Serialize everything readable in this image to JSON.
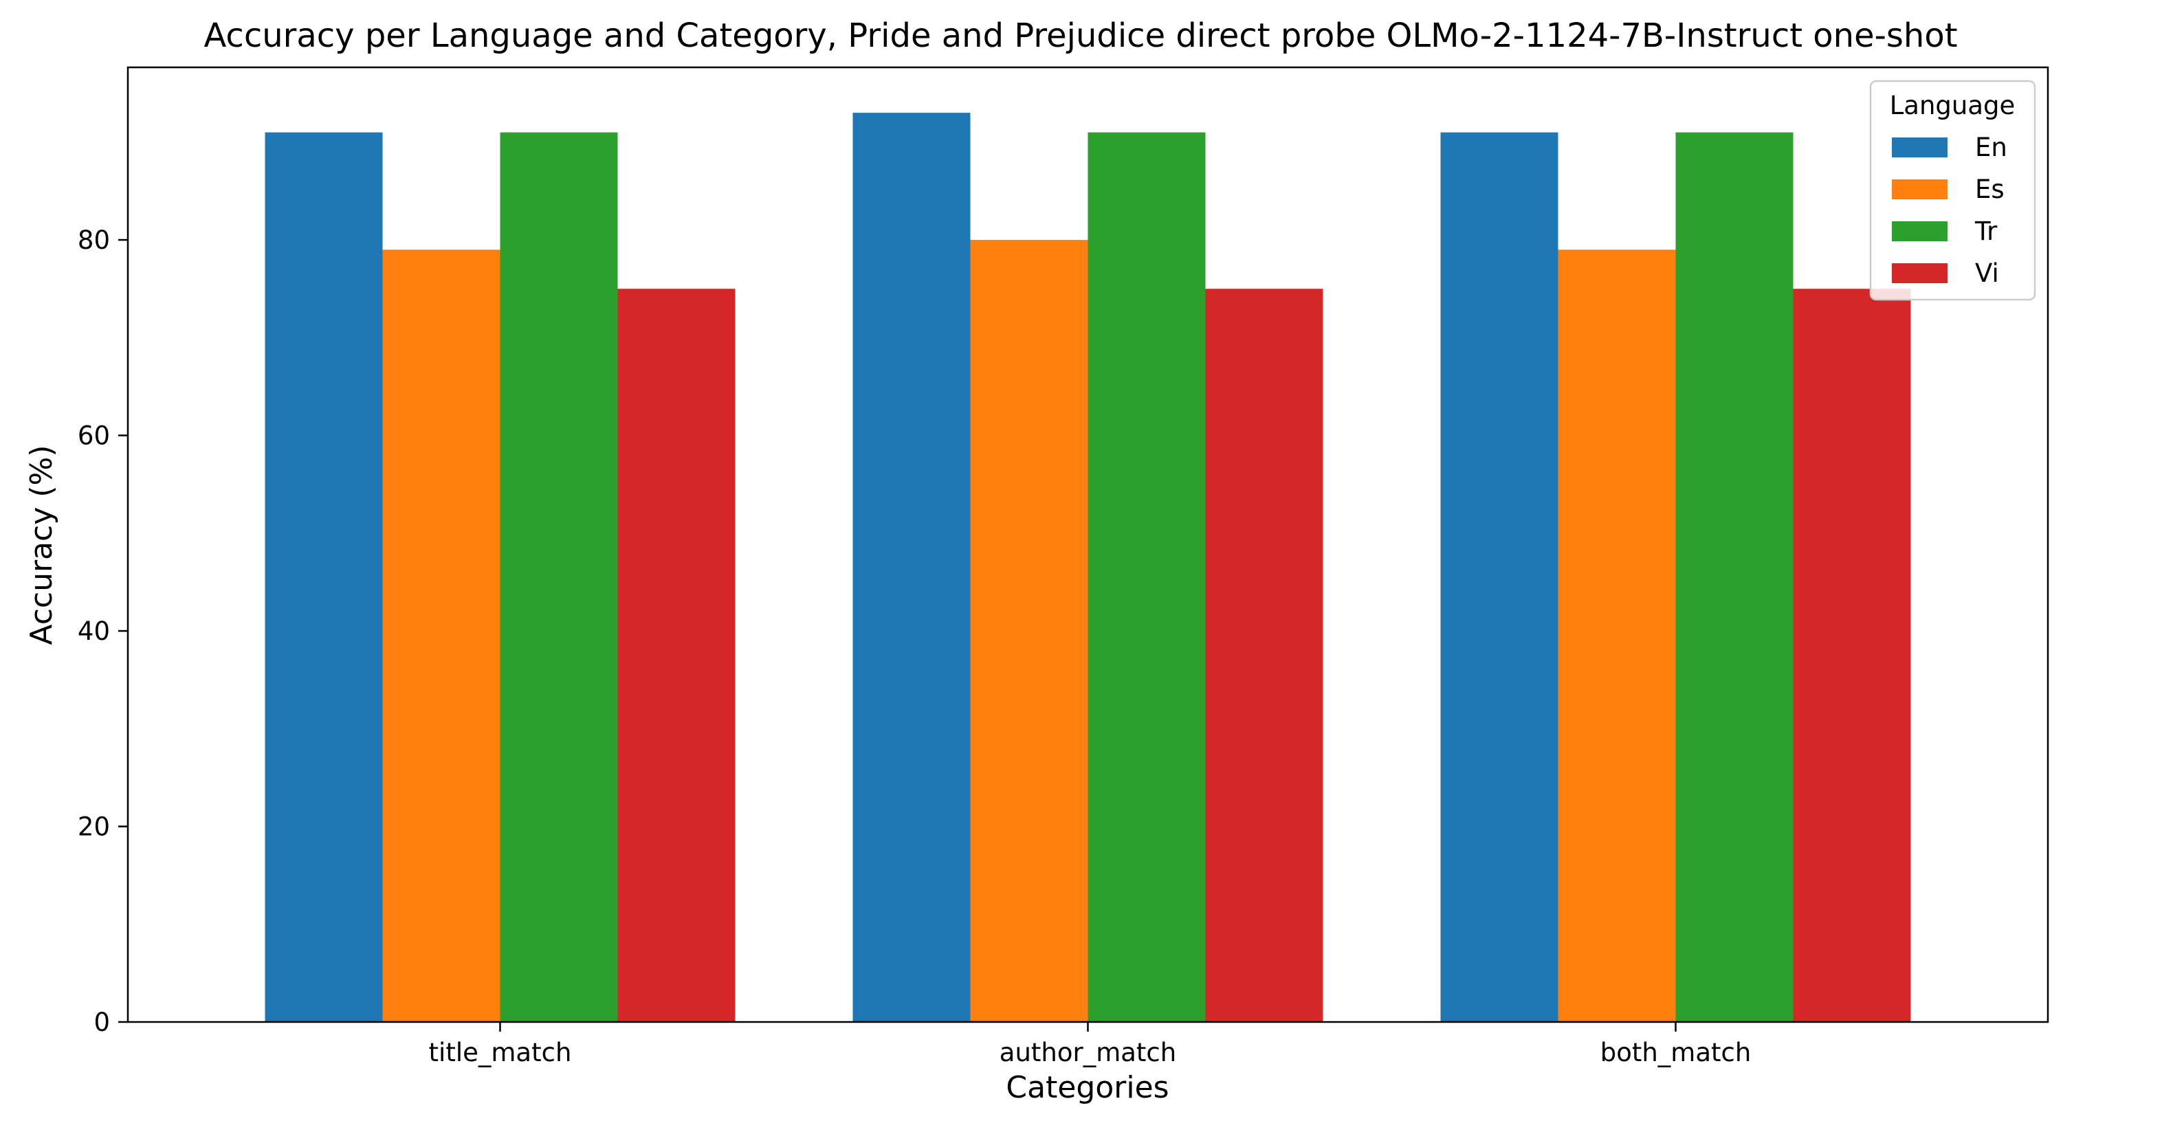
{
  "chart_data": {
    "type": "bar",
    "title": "Accuracy per Language and Category, Pride and Prejudice direct probe OLMo-2-1124-7B-Instruct one-shot",
    "xlabel": "Categories",
    "ylabel": "Accuracy (%)",
    "ylim": [
      0,
      97.65
    ],
    "yticks": [
      0,
      20,
      40,
      60,
      80
    ],
    "grid": false,
    "categories": [
      "title_match",
      "author_match",
      "both_match"
    ],
    "legend": {
      "title": "Language",
      "placement": "top-right"
    },
    "series": [
      {
        "name": "En",
        "color": "#1f77b4",
        "values": [
          91,
          93,
          91
        ]
      },
      {
        "name": "Es",
        "color": "#ff7f0e",
        "values": [
          79,
          80,
          79
        ]
      },
      {
        "name": "Tr",
        "color": "#2ca02c",
        "values": [
          91,
          91,
          91
        ]
      },
      {
        "name": "Vi",
        "color": "#d62728",
        "values": [
          75,
          75,
          75
        ]
      }
    ]
  }
}
